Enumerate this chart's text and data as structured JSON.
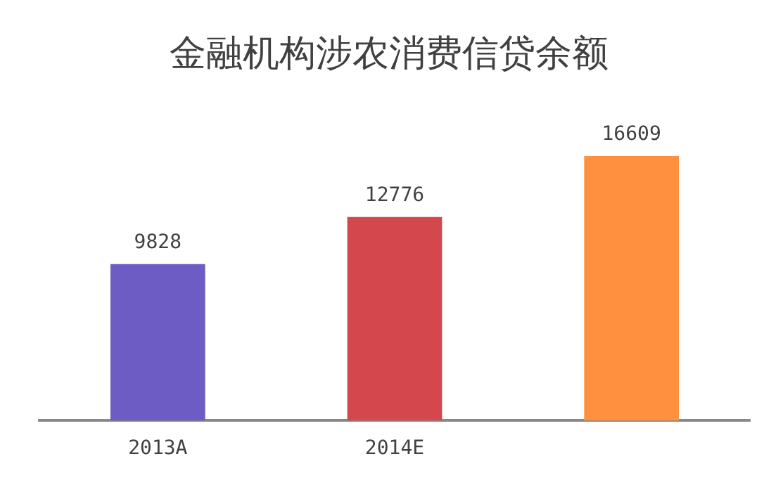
{
  "chart_data": {
    "type": "bar",
    "title": "金融机构涉农消费信贷余额",
    "categories": [
      "2013A",
      "2014E",
      null
    ],
    "values": [
      9828,
      12776,
      16609
    ],
    "colors": [
      "#6c5cc4",
      "#d4474c",
      "#fe9040"
    ],
    "data_labels": true,
    "grid": false,
    "legend": false
  }
}
